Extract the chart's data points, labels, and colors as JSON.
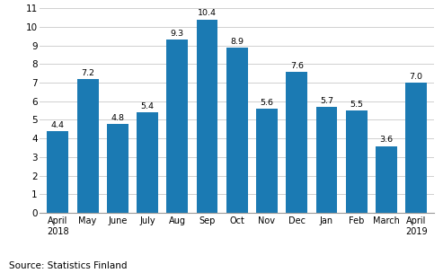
{
  "categories": [
    "April\n2018",
    "May",
    "June",
    "July",
    "Aug",
    "Sep",
    "Oct",
    "Nov",
    "Dec",
    "Jan",
    "Feb",
    "March",
    "April\n2019"
  ],
  "values": [
    4.4,
    7.2,
    4.8,
    5.4,
    9.3,
    10.4,
    8.9,
    5.6,
    7.6,
    5.7,
    5.5,
    3.6,
    7.0
  ],
  "bar_color": "#1b7ab3",
  "ylim": [
    0,
    11
  ],
  "yticks": [
    0,
    1,
    2,
    3,
    4,
    5,
    6,
    7,
    8,
    9,
    10,
    11
  ],
  "source_text": "Source: Statistics Finland",
  "tick_fontsize": 7.5,
  "x_label_fontsize": 7.0,
  "source_fontsize": 7.5,
  "bar_value_fontsize": 6.8,
  "bar_width": 0.72,
  "grid_color": "#d0d0d0",
  "spine_color": "#999999"
}
